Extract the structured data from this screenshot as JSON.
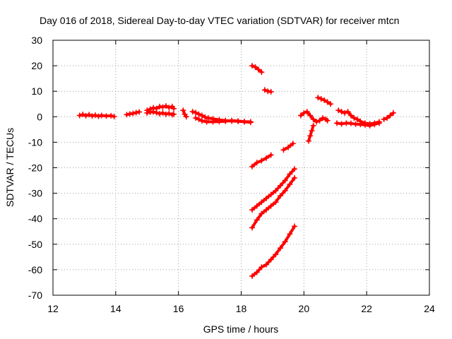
{
  "chart_data": {
    "type": "scatter",
    "title": "Day 016 of 2018, Sidereal Day-to-day VTEC variation (SDTVAR) for receiver mtcn",
    "xlabel": "GPS time / hours",
    "ylabel": "SDTVAR / TECUs",
    "xlim": [
      12,
      24
    ],
    "ylim": [
      -70,
      30
    ],
    "xticks": [
      "12",
      "14",
      "16",
      "18",
      "20",
      "22",
      "24"
    ],
    "yticks": [
      "30",
      "20",
      "10",
      "0",
      "-10",
      "-20",
      "-30",
      "-40",
      "-50",
      "-60",
      "-70"
    ],
    "grid": true,
    "marker": "plus",
    "color": "#ff0000",
    "series": [
      {
        "name": "near-zero",
        "points": [
          [
            12.85,
            0.5
          ],
          [
            12.95,
            0.9
          ],
          [
            13.05,
            0.4
          ],
          [
            13.15,
            0.8
          ],
          [
            13.25,
            0.3
          ],
          [
            13.35,
            0.6
          ],
          [
            13.45,
            0.2
          ],
          [
            13.55,
            0.5
          ],
          [
            13.7,
            0.3
          ],
          [
            13.85,
            0.4
          ],
          [
            13.95,
            0.1
          ]
        ]
      },
      {
        "name": "near-zero",
        "points": [
          [
            14.35,
            0.8
          ],
          [
            14.45,
            1.1
          ],
          [
            14.55,
            1.3
          ],
          [
            14.65,
            1.6
          ],
          [
            14.75,
            1.9
          ]
        ]
      },
      {
        "name": "near-zero",
        "points": [
          [
            15.0,
            2.5
          ],
          [
            15.1,
            3.0
          ],
          [
            15.2,
            3.5
          ],
          [
            15.3,
            3.2
          ],
          [
            15.4,
            4.0
          ],
          [
            15.5,
            3.8
          ],
          [
            15.6,
            4.2
          ],
          [
            15.7,
            3.6
          ],
          [
            15.8,
            4.0
          ],
          [
            15.85,
            3.2
          ]
        ]
      },
      {
        "name": "near-zero",
        "points": [
          [
            15.0,
            1.5
          ],
          [
            15.1,
            1.8
          ],
          [
            15.2,
            1.9
          ],
          [
            15.3,
            1.6
          ],
          [
            15.4,
            1.2
          ],
          [
            15.5,
            1.5
          ],
          [
            15.6,
            1.0
          ],
          [
            15.7,
            1.3
          ],
          [
            15.8,
            0.8
          ],
          [
            15.85,
            1.0
          ]
        ]
      },
      {
        "name": "near-zero",
        "points": [
          [
            16.15,
            2.5
          ],
          [
            16.2,
            1.0
          ],
          [
            16.25,
            0.0
          ]
        ]
      },
      {
        "name": "near-zero",
        "points": [
          [
            16.45,
            2.0
          ],
          [
            16.55,
            1.6
          ],
          [
            16.65,
            1.0
          ],
          [
            16.75,
            0.5
          ],
          [
            16.85,
            -0.2
          ],
          [
            16.95,
            -0.5
          ],
          [
            17.1,
            -0.8
          ],
          [
            17.3,
            -1.2
          ],
          [
            17.5,
            -1.5
          ],
          [
            17.7,
            -1.7
          ],
          [
            17.9,
            -1.8
          ],
          [
            18.1,
            -1.9
          ],
          [
            18.3,
            -2.0
          ]
        ]
      },
      {
        "name": "near-zero",
        "points": [
          [
            16.55,
            -0.5
          ],
          [
            16.65,
            -1.0
          ],
          [
            16.75,
            -1.6
          ],
          [
            16.9,
            -2.0
          ],
          [
            17.1,
            -2.0
          ],
          [
            17.3,
            -1.9
          ],
          [
            17.5,
            -1.8
          ],
          [
            17.7,
            -1.5
          ],
          [
            17.9,
            -1.7
          ],
          [
            18.1,
            -2.0
          ],
          [
            18.3,
            -2.2
          ]
        ]
      },
      {
        "name": "near-zero",
        "points": [
          [
            19.9,
            0.5
          ],
          [
            20.0,
            1.5
          ],
          [
            20.1,
            2.0
          ],
          [
            20.2,
            0.5
          ],
          [
            20.3,
            -1.0
          ],
          [
            20.4,
            -2.0
          ],
          [
            20.5,
            -1.5
          ],
          [
            20.6,
            -0.5
          ],
          [
            20.7,
            -1.0
          ],
          [
            20.75,
            -1.5
          ]
        ]
      },
      {
        "name": "near-zero",
        "points": [
          [
            20.3,
            -3.5
          ],
          [
            20.25,
            -5.5
          ],
          [
            20.2,
            -7.5
          ],
          [
            20.15,
            -9.5
          ]
        ]
      },
      {
        "name": "near-zero",
        "points": [
          [
            20.45,
            7.5
          ],
          [
            20.55,
            7.0
          ],
          [
            20.65,
            6.5
          ],
          [
            20.75,
            5.8
          ],
          [
            20.85,
            5.0
          ]
        ]
      },
      {
        "name": "near-zero",
        "points": [
          [
            21.1,
            2.5
          ],
          [
            21.2,
            2.0
          ],
          [
            21.3,
            1.5
          ],
          [
            21.4,
            2.0
          ],
          [
            21.5,
            0.5
          ],
          [
            21.6,
            -0.5
          ],
          [
            21.7,
            -1.0
          ],
          [
            21.8,
            -1.8
          ],
          [
            21.95,
            -2.5
          ],
          [
            22.1,
            -2.8
          ],
          [
            22.25,
            -2.5
          ],
          [
            22.4,
            -2.0
          ]
        ]
      },
      {
        "name": "near-zero",
        "points": [
          [
            21.05,
            -2.5
          ],
          [
            21.2,
            -2.8
          ],
          [
            21.35,
            -2.5
          ],
          [
            21.5,
            -2.6
          ],
          [
            21.65,
            -2.9
          ],
          [
            21.8,
            -3.0
          ],
          [
            21.95,
            -3.2
          ],
          [
            22.1,
            -3.5
          ],
          [
            22.25,
            -3.0
          ],
          [
            22.4,
            -2.5
          ]
        ]
      },
      {
        "name": "near-zero",
        "points": [
          [
            22.55,
            -1.0
          ],
          [
            22.65,
            -0.5
          ],
          [
            22.75,
            0.5
          ],
          [
            22.85,
            1.5
          ]
        ]
      },
      {
        "name": "track",
        "points": [
          [
            18.35,
            20
          ],
          [
            18.45,
            19.5
          ],
          [
            18.55,
            18.5
          ],
          [
            18.65,
            17.5
          ]
        ]
      },
      {
        "name": "track",
        "points": [
          [
            18.75,
            10.5
          ],
          [
            18.85,
            10.0
          ],
          [
            18.95,
            9.8
          ]
        ]
      },
      {
        "name": "track",
        "points": [
          [
            18.35,
            -19.5
          ],
          [
            18.5,
            -18.0
          ],
          [
            18.65,
            -17.2
          ],
          [
            18.8,
            -16.2
          ],
          [
            18.95,
            -15.0
          ]
        ]
      },
      {
        "name": "track",
        "points": [
          [
            19.35,
            -13.0
          ],
          [
            19.5,
            -12.0
          ],
          [
            19.65,
            -10.5
          ]
        ]
      },
      {
        "name": "track",
        "points": [
          [
            18.35,
            -36.5
          ],
          [
            18.5,
            -35.0
          ],
          [
            18.65,
            -33.5
          ],
          [
            18.8,
            -32.0
          ],
          [
            18.95,
            -30.5
          ],
          [
            19.1,
            -29.0
          ],
          [
            19.25,
            -27.0
          ],
          [
            19.4,
            -25.0
          ],
          [
            19.55,
            -22.5
          ],
          [
            19.7,
            -20.5
          ]
        ]
      },
      {
        "name": "track",
        "points": [
          [
            18.35,
            -43.5
          ],
          [
            18.5,
            -40.5
          ],
          [
            18.65,
            -38.0
          ],
          [
            18.8,
            -36.5
          ],
          [
            18.95,
            -35.0
          ],
          [
            19.1,
            -33.5
          ],
          [
            19.25,
            -31.0
          ],
          [
            19.4,
            -29.0
          ],
          [
            19.55,
            -26.5
          ],
          [
            19.7,
            -24.0
          ]
        ]
      },
      {
        "name": "track",
        "points": [
          [
            18.35,
            -62.5
          ],
          [
            18.5,
            -61.0
          ],
          [
            18.65,
            -59.0
          ],
          [
            18.8,
            -58.0
          ],
          [
            18.95,
            -56.0
          ],
          [
            19.1,
            -54.0
          ],
          [
            19.25,
            -51.5
          ],
          [
            19.4,
            -49.0
          ],
          [
            19.55,
            -46.0
          ],
          [
            19.7,
            -43.0
          ]
        ]
      }
    ]
  }
}
